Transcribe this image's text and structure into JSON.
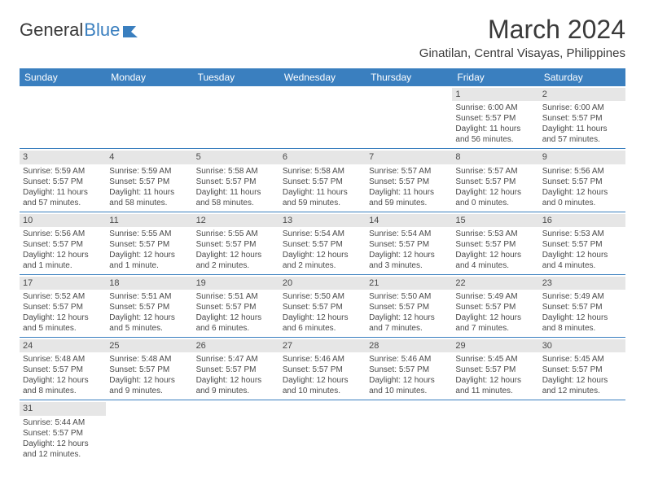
{
  "logo": {
    "text1": "General",
    "text2": "Blue"
  },
  "title": "March 2024",
  "location": "Ginatilan, Central Visayas, Philippines",
  "colors": {
    "header_bg": "#3a7fbf",
    "header_text": "#ffffff",
    "daynum_bg": "#e6e6e6",
    "row_border": "#3a7fbf",
    "text": "#4a4a4a",
    "logo_blue": "#3a7fbf"
  },
  "day_names": [
    "Sunday",
    "Monday",
    "Tuesday",
    "Wednesday",
    "Thursday",
    "Friday",
    "Saturday"
  ],
  "weeks": [
    [
      null,
      null,
      null,
      null,
      null,
      {
        "d": "1",
        "sr": "Sunrise: 6:00 AM",
        "ss": "Sunset: 5:57 PM",
        "dl": "Daylight: 11 hours and 56 minutes."
      },
      {
        "d": "2",
        "sr": "Sunrise: 6:00 AM",
        "ss": "Sunset: 5:57 PM",
        "dl": "Daylight: 11 hours and 57 minutes."
      }
    ],
    [
      {
        "d": "3",
        "sr": "Sunrise: 5:59 AM",
        "ss": "Sunset: 5:57 PM",
        "dl": "Daylight: 11 hours and 57 minutes."
      },
      {
        "d": "4",
        "sr": "Sunrise: 5:59 AM",
        "ss": "Sunset: 5:57 PM",
        "dl": "Daylight: 11 hours and 58 minutes."
      },
      {
        "d": "5",
        "sr": "Sunrise: 5:58 AM",
        "ss": "Sunset: 5:57 PM",
        "dl": "Daylight: 11 hours and 58 minutes."
      },
      {
        "d": "6",
        "sr": "Sunrise: 5:58 AM",
        "ss": "Sunset: 5:57 PM",
        "dl": "Daylight: 11 hours and 59 minutes."
      },
      {
        "d": "7",
        "sr": "Sunrise: 5:57 AM",
        "ss": "Sunset: 5:57 PM",
        "dl": "Daylight: 11 hours and 59 minutes."
      },
      {
        "d": "8",
        "sr": "Sunrise: 5:57 AM",
        "ss": "Sunset: 5:57 PM",
        "dl": "Daylight: 12 hours and 0 minutes."
      },
      {
        "d": "9",
        "sr": "Sunrise: 5:56 AM",
        "ss": "Sunset: 5:57 PM",
        "dl": "Daylight: 12 hours and 0 minutes."
      }
    ],
    [
      {
        "d": "10",
        "sr": "Sunrise: 5:56 AM",
        "ss": "Sunset: 5:57 PM",
        "dl": "Daylight: 12 hours and 1 minute."
      },
      {
        "d": "11",
        "sr": "Sunrise: 5:55 AM",
        "ss": "Sunset: 5:57 PM",
        "dl": "Daylight: 12 hours and 1 minute."
      },
      {
        "d": "12",
        "sr": "Sunrise: 5:55 AM",
        "ss": "Sunset: 5:57 PM",
        "dl": "Daylight: 12 hours and 2 minutes."
      },
      {
        "d": "13",
        "sr": "Sunrise: 5:54 AM",
        "ss": "Sunset: 5:57 PM",
        "dl": "Daylight: 12 hours and 2 minutes."
      },
      {
        "d": "14",
        "sr": "Sunrise: 5:54 AM",
        "ss": "Sunset: 5:57 PM",
        "dl": "Daylight: 12 hours and 3 minutes."
      },
      {
        "d": "15",
        "sr": "Sunrise: 5:53 AM",
        "ss": "Sunset: 5:57 PM",
        "dl": "Daylight: 12 hours and 4 minutes."
      },
      {
        "d": "16",
        "sr": "Sunrise: 5:53 AM",
        "ss": "Sunset: 5:57 PM",
        "dl": "Daylight: 12 hours and 4 minutes."
      }
    ],
    [
      {
        "d": "17",
        "sr": "Sunrise: 5:52 AM",
        "ss": "Sunset: 5:57 PM",
        "dl": "Daylight: 12 hours and 5 minutes."
      },
      {
        "d": "18",
        "sr": "Sunrise: 5:51 AM",
        "ss": "Sunset: 5:57 PM",
        "dl": "Daylight: 12 hours and 5 minutes."
      },
      {
        "d": "19",
        "sr": "Sunrise: 5:51 AM",
        "ss": "Sunset: 5:57 PM",
        "dl": "Daylight: 12 hours and 6 minutes."
      },
      {
        "d": "20",
        "sr": "Sunrise: 5:50 AM",
        "ss": "Sunset: 5:57 PM",
        "dl": "Daylight: 12 hours and 6 minutes."
      },
      {
        "d": "21",
        "sr": "Sunrise: 5:50 AM",
        "ss": "Sunset: 5:57 PM",
        "dl": "Daylight: 12 hours and 7 minutes."
      },
      {
        "d": "22",
        "sr": "Sunrise: 5:49 AM",
        "ss": "Sunset: 5:57 PM",
        "dl": "Daylight: 12 hours and 7 minutes."
      },
      {
        "d": "23",
        "sr": "Sunrise: 5:49 AM",
        "ss": "Sunset: 5:57 PM",
        "dl": "Daylight: 12 hours and 8 minutes."
      }
    ],
    [
      {
        "d": "24",
        "sr": "Sunrise: 5:48 AM",
        "ss": "Sunset: 5:57 PM",
        "dl": "Daylight: 12 hours and 8 minutes."
      },
      {
        "d": "25",
        "sr": "Sunrise: 5:48 AM",
        "ss": "Sunset: 5:57 PM",
        "dl": "Daylight: 12 hours and 9 minutes."
      },
      {
        "d": "26",
        "sr": "Sunrise: 5:47 AM",
        "ss": "Sunset: 5:57 PM",
        "dl": "Daylight: 12 hours and 9 minutes."
      },
      {
        "d": "27",
        "sr": "Sunrise: 5:46 AM",
        "ss": "Sunset: 5:57 PM",
        "dl": "Daylight: 12 hours and 10 minutes."
      },
      {
        "d": "28",
        "sr": "Sunrise: 5:46 AM",
        "ss": "Sunset: 5:57 PM",
        "dl": "Daylight: 12 hours and 10 minutes."
      },
      {
        "d": "29",
        "sr": "Sunrise: 5:45 AM",
        "ss": "Sunset: 5:57 PM",
        "dl": "Daylight: 12 hours and 11 minutes."
      },
      {
        "d": "30",
        "sr": "Sunrise: 5:45 AM",
        "ss": "Sunset: 5:57 PM",
        "dl": "Daylight: 12 hours and 12 minutes."
      }
    ],
    [
      {
        "d": "31",
        "sr": "Sunrise: 5:44 AM",
        "ss": "Sunset: 5:57 PM",
        "dl": "Daylight: 12 hours and 12 minutes."
      },
      null,
      null,
      null,
      null,
      null,
      null
    ]
  ]
}
